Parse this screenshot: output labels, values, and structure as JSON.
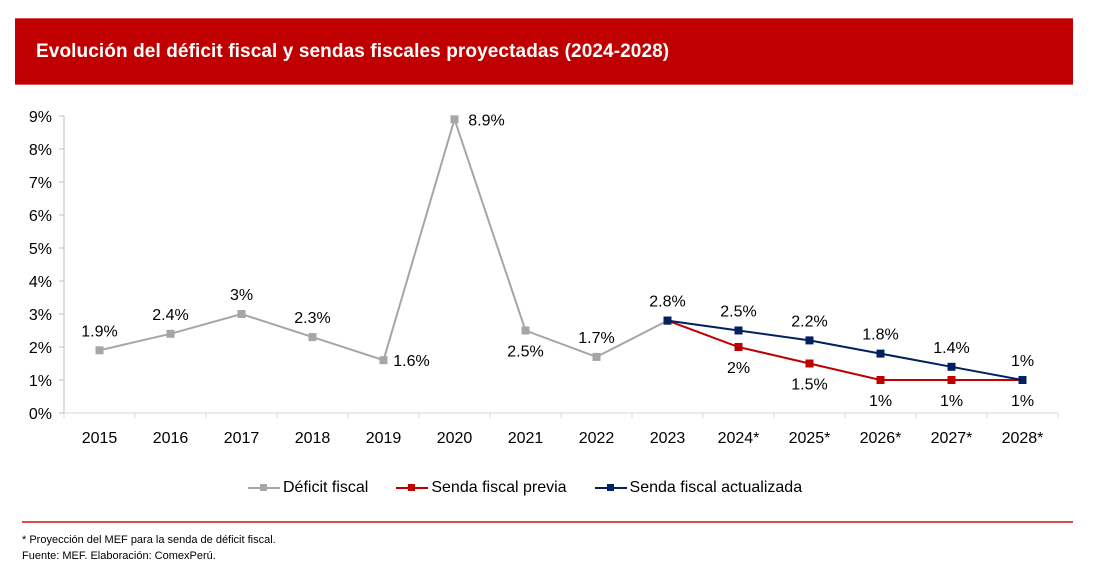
{
  "header": {
    "title": "Evolución del déficit fiscal y sendas fiscales proyectadas (2024-2028)"
  },
  "colors": {
    "header_bg": "#c00000",
    "deficit": "#a6a6a6",
    "previa": "#c00000",
    "actualizada": "#002060",
    "rule": "#e04848"
  },
  "chart_data": {
    "type": "line",
    "title": "Evolución del déficit fiscal y sendas fiscales proyectadas (2024-2028)",
    "xlabel": "",
    "ylabel": "",
    "categories": [
      "2015",
      "2016",
      "2017",
      "2018",
      "2019",
      "2020",
      "2021",
      "2022",
      "2023",
      "2024*",
      "2025*",
      "2026*",
      "2027*",
      "2028*"
    ],
    "ylim": [
      0,
      9
    ],
    "yticks": [
      "0%",
      "1%",
      "2%",
      "3%",
      "4%",
      "5%",
      "6%",
      "7%",
      "8%",
      "9%"
    ],
    "grid": false,
    "legend_position": "bottom",
    "series": [
      {
        "name": "Déficit fiscal",
        "key": "deficit",
        "values": [
          1.9,
          2.4,
          3.0,
          2.3,
          1.6,
          8.9,
          2.5,
          1.7,
          2.8,
          null,
          null,
          null,
          null,
          null
        ],
        "labels": [
          "1.9%",
          "2.4%",
          "3%",
          "2.3%",
          "1.6%",
          "8.9%",
          "2.5%",
          "1.7%",
          null,
          null,
          null,
          null,
          null,
          null
        ]
      },
      {
        "name": "Senda fiscal previa",
        "key": "previa",
        "values": [
          null,
          null,
          null,
          null,
          null,
          null,
          null,
          null,
          2.8,
          2.0,
          1.5,
          1.0,
          1.0,
          1.0
        ],
        "labels": [
          null,
          null,
          null,
          null,
          null,
          null,
          null,
          null,
          null,
          "2%",
          "1.5%",
          "1%",
          "1%",
          "1%"
        ]
      },
      {
        "name": "Senda fiscal actualizada",
        "key": "actualizada",
        "values": [
          null,
          null,
          null,
          null,
          null,
          null,
          null,
          null,
          2.8,
          2.5,
          2.2,
          1.8,
          1.4,
          1.0
        ],
        "labels": [
          null,
          null,
          null,
          null,
          null,
          null,
          null,
          null,
          "2.8%",
          "2.5%",
          "2.2%",
          "1.8%",
          "1.4%",
          "1%"
        ]
      }
    ]
  },
  "legend": {
    "items": [
      {
        "label": "Déficit fiscal",
        "key": "deficit"
      },
      {
        "label": "Senda fiscal previa",
        "key": "previa"
      },
      {
        "label": "Senda fiscal actualizada",
        "key": "actualizada"
      }
    ]
  },
  "footnotes": {
    "note": "* Proyección del MEF para la senda de déficit fiscal.",
    "source": "Fuente: MEF. Elaboración: ComexPerú."
  }
}
